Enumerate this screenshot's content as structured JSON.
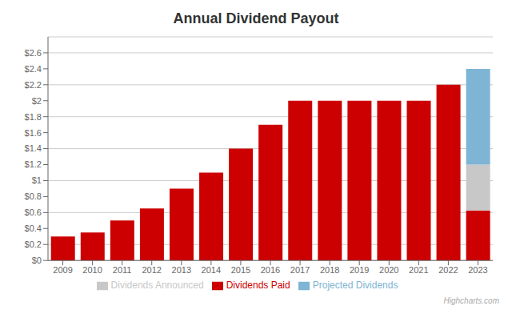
{
  "chart_data": {
    "type": "bar",
    "title": "Annual Dividend Payout",
    "stacked": true,
    "categories": [
      "2009",
      "2010",
      "2011",
      "2012",
      "2013",
      "2014",
      "2015",
      "2016",
      "2017",
      "2018",
      "2019",
      "2020",
      "2021",
      "2022",
      "2023"
    ],
    "series": [
      {
        "name": "Dividends Paid",
        "color": "#cc0000",
        "values": [
          0.3,
          0.35,
          0.5,
          0.65,
          0.9,
          1.1,
          1.4,
          1.7,
          2.0,
          2.0,
          2.0,
          2.0,
          2.0,
          2.2,
          0.625
        ]
      },
      {
        "name": "Dividends Announced",
        "color": "#c8c8c8",
        "values": [
          0,
          0,
          0,
          0,
          0,
          0,
          0,
          0,
          0,
          0,
          0,
          0,
          0,
          0,
          0.575
        ]
      },
      {
        "name": "Projected Dividends",
        "color": "#7eb4d4",
        "values": [
          0,
          0,
          0,
          0,
          0,
          0,
          0,
          0,
          0,
          0,
          0,
          0,
          0,
          0,
          1.2
        ]
      }
    ],
    "ylim": [
      0,
      2.8
    ],
    "yticks": [
      {
        "value": 0,
        "label": "$0"
      },
      {
        "value": 0.2,
        "label": "$0.2"
      },
      {
        "value": 0.4,
        "label": "$0.4"
      },
      {
        "value": 0.6,
        "label": "$0.6"
      },
      {
        "value": 0.8,
        "label": "$0.8"
      },
      {
        "value": 1.0,
        "label": "$1"
      },
      {
        "value": 1.2,
        "label": "$1.2"
      },
      {
        "value": 1.4,
        "label": "$1.4"
      },
      {
        "value": 1.6,
        "label": "$1.6"
      },
      {
        "value": 1.8,
        "label": "$1.8"
      },
      {
        "value": 2.0,
        "label": "$2"
      },
      {
        "value": 2.2,
        "label": "$2.2"
      },
      {
        "value": 2.4,
        "label": "$2.4"
      },
      {
        "value": 2.6,
        "label": "$2.6"
      }
    ],
    "grid": true,
    "legend": "bottom",
    "annotations": [
      "Highcharts.com"
    ]
  }
}
